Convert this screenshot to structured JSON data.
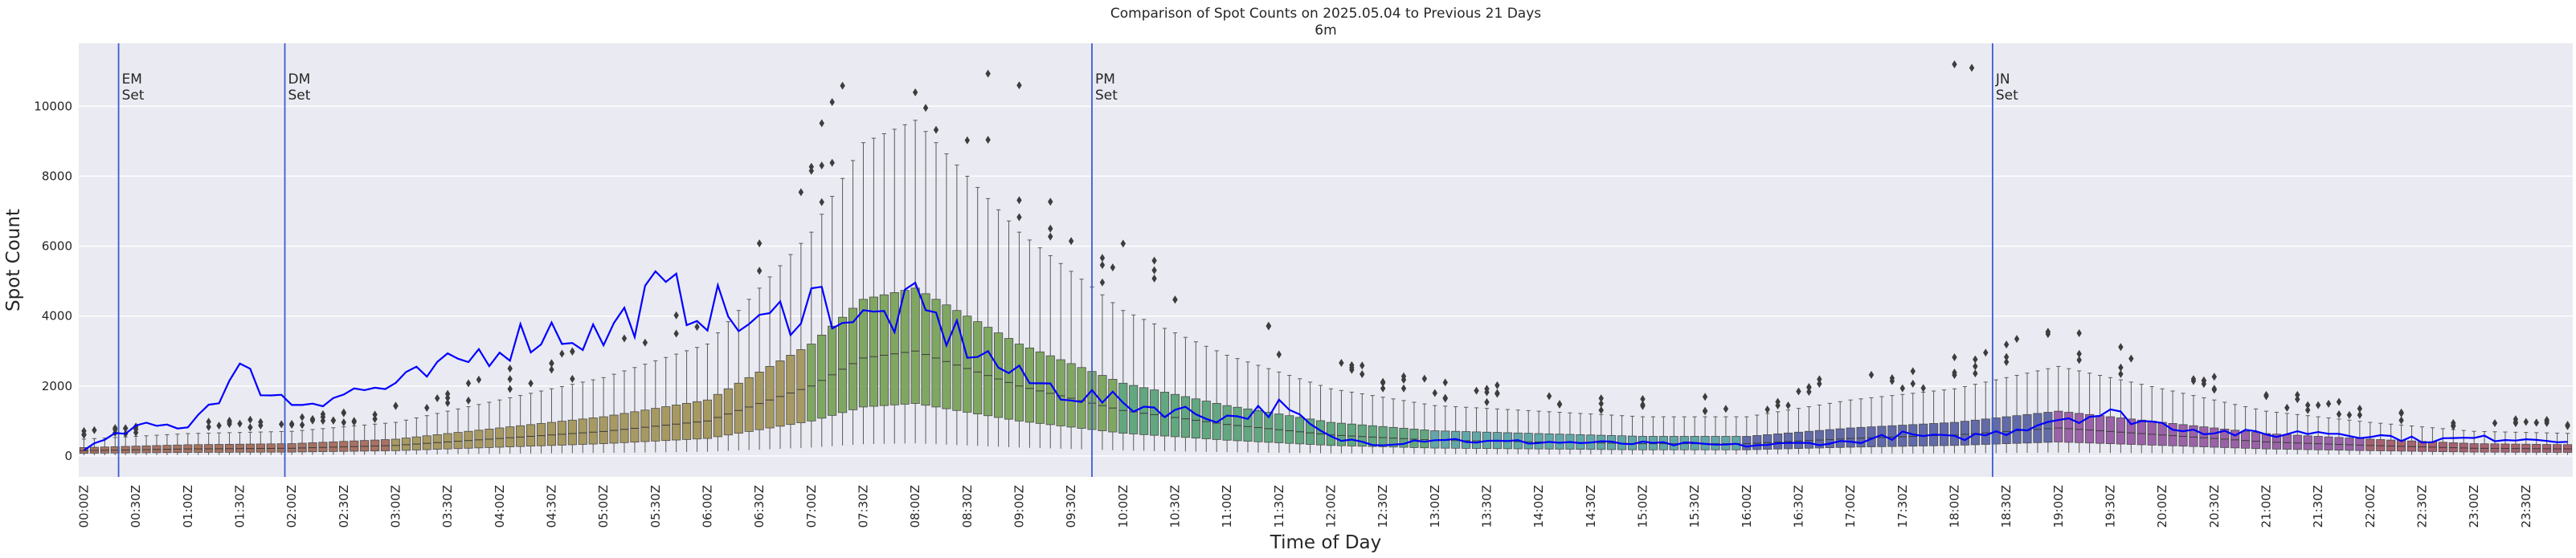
{
  "chart_data": {
    "type": "box",
    "title": "Comparison of Spot Counts on 2025.05.04 to Previous 21 Days",
    "subtitle": "6m",
    "xlabel": "Time of Day",
    "ylabel": "Spot Count",
    "ylim": [
      -600,
      11800
    ],
    "yticks": [
      0,
      2000,
      4000,
      6000,
      8000,
      10000
    ],
    "interval_minutes": 6,
    "xticks": [
      "00:00Z",
      "00:30Z",
      "01:00Z",
      "01:30Z",
      "02:00Z",
      "02:30Z",
      "03:00Z",
      "03:30Z",
      "04:00Z",
      "04:30Z",
      "05:00Z",
      "05:30Z",
      "06:00Z",
      "06:30Z",
      "07:00Z",
      "07:30Z",
      "08:00Z",
      "08:30Z",
      "09:00Z",
      "09:30Z",
      "10:00Z",
      "10:30Z",
      "11:00Z",
      "11:30Z",
      "12:00Z",
      "12:30Z",
      "13:00Z",
      "13:30Z",
      "14:00Z",
      "14:30Z",
      "15:00Z",
      "15:30Z",
      "16:00Z",
      "16:30Z",
      "17:00Z",
      "17:30Z",
      "18:00Z",
      "18:30Z",
      "19:00Z",
      "19:30Z",
      "20:00Z",
      "20:30Z",
      "21:00Z",
      "21:30Z",
      "22:00Z",
      "22:30Z",
      "23:00Z",
      "23:30Z"
    ],
    "grid": true,
    "current_day_line_color": "#0000ff",
    "vlines": [
      {
        "time": "00:20Z",
        "label": "EM\nSet"
      },
      {
        "time": "01:56Z",
        "label": "DM\nSet"
      },
      {
        "time": "09:42Z",
        "label": "PM\nSet"
      },
      {
        "time": "18:22Z",
        "label": "JN\nSet"
      }
    ],
    "median_profile_hourly": [
      {
        "time": "00:00Z",
        "value": 150
      },
      {
        "time": "01:00Z",
        "value": 200
      },
      {
        "time": "02:00Z",
        "value": 220
      },
      {
        "time": "03:00Z",
        "value": 300
      },
      {
        "time": "04:00Z",
        "value": 500
      },
      {
        "time": "05:00Z",
        "value": 700
      },
      {
        "time": "06:00Z",
        "value": 1000
      },
      {
        "time": "07:00Z",
        "value": 2000
      },
      {
        "time": "07:30Z",
        "value": 2800
      },
      {
        "time": "08:00Z",
        "value": 3000
      },
      {
        "time": "09:00Z",
        "value": 2000
      },
      {
        "time": "10:00Z",
        "value": 1300
      },
      {
        "time": "11:00Z",
        "value": 900
      },
      {
        "time": "12:00Z",
        "value": 600
      },
      {
        "time": "13:00Z",
        "value": 450
      },
      {
        "time": "14:00Z",
        "value": 400
      },
      {
        "time": "15:00Z",
        "value": 350
      },
      {
        "time": "16:00Z",
        "value": 350
      },
      {
        "time": "17:00Z",
        "value": 500
      },
      {
        "time": "18:00Z",
        "value": 600
      },
      {
        "time": "19:00Z",
        "value": 800
      },
      {
        "time": "20:00Z",
        "value": 600
      },
      {
        "time": "21:00Z",
        "value": 400
      },
      {
        "time": "22:00Z",
        "value": 300
      },
      {
        "time": "23:00Z",
        "value": 220
      },
      {
        "time": "24:00Z",
        "value": 200
      }
    ],
    "current_day_hourly": [
      {
        "time": "00:00Z",
        "value": 200
      },
      {
        "time": "00:30Z",
        "value": 800
      },
      {
        "time": "01:00Z",
        "value": 900
      },
      {
        "time": "01:30Z",
        "value": 2400
      },
      {
        "time": "02:00Z",
        "value": 1500
      },
      {
        "time": "02:30Z",
        "value": 1800
      },
      {
        "time": "03:00Z",
        "value": 2000
      },
      {
        "time": "03:30Z",
        "value": 2500
      },
      {
        "time": "04:00Z",
        "value": 3200
      },
      {
        "time": "04:30Z",
        "value": 3600
      },
      {
        "time": "05:00Z",
        "value": 3400
      },
      {
        "time": "05:30Z",
        "value": 4600
      },
      {
        "time": "06:00Z",
        "value": 4300
      },
      {
        "time": "06:30Z",
        "value": 3600
      },
      {
        "time": "07:00Z",
        "value": 4600
      },
      {
        "time": "07:30Z",
        "value": 3800
      },
      {
        "time": "08:00Z",
        "value": 4200
      },
      {
        "time": "08:30Z",
        "value": 3200
      },
      {
        "time": "09:00Z",
        "value": 2200
      },
      {
        "time": "09:30Z",
        "value": 1800
      },
      {
        "time": "10:00Z",
        "value": 1500
      },
      {
        "time": "10:30Z",
        "value": 1300
      },
      {
        "time": "11:00Z",
        "value": 1100
      },
      {
        "time": "11:30Z",
        "value": 1400
      },
      {
        "time": "12:00Z",
        "value": 500
      },
      {
        "time": "12:30Z",
        "value": 350
      },
      {
        "time": "13:00Z",
        "value": 500
      },
      {
        "time": "13:30Z",
        "value": 400
      },
      {
        "time": "14:00Z",
        "value": 400
      },
      {
        "time": "15:00Z",
        "value": 350
      },
      {
        "time": "16:00Z",
        "value": 300
      },
      {
        "time": "17:00Z",
        "value": 400
      },
      {
        "time": "17:30Z",
        "value": 600
      },
      {
        "time": "18:00Z",
        "value": 500
      },
      {
        "time": "18:30Z",
        "value": 700
      },
      {
        "time": "19:00Z",
        "value": 1100
      },
      {
        "time": "19:30Z",
        "value": 1200
      },
      {
        "time": "20:00Z",
        "value": 900
      },
      {
        "time": "20:30Z",
        "value": 700
      },
      {
        "time": "21:00Z",
        "value": 600
      },
      {
        "time": "21:30Z",
        "value": 700
      },
      {
        "time": "22:00Z",
        "value": 600
      },
      {
        "time": "22:30Z",
        "value": 450
      },
      {
        "time": "23:00Z",
        "value": 500
      },
      {
        "time": "23:30Z",
        "value": 500
      },
      {
        "time": "24:00Z",
        "value": 450
      }
    ],
    "outlier_peaks": [
      {
        "time": "08:00Z",
        "value": 10400
      },
      {
        "time": "09:00Z",
        "value": 10600
      },
      {
        "time": "18:00Z",
        "value": 11200
      },
      {
        "time": "18:10Z",
        "value": 11100
      }
    ]
  }
}
